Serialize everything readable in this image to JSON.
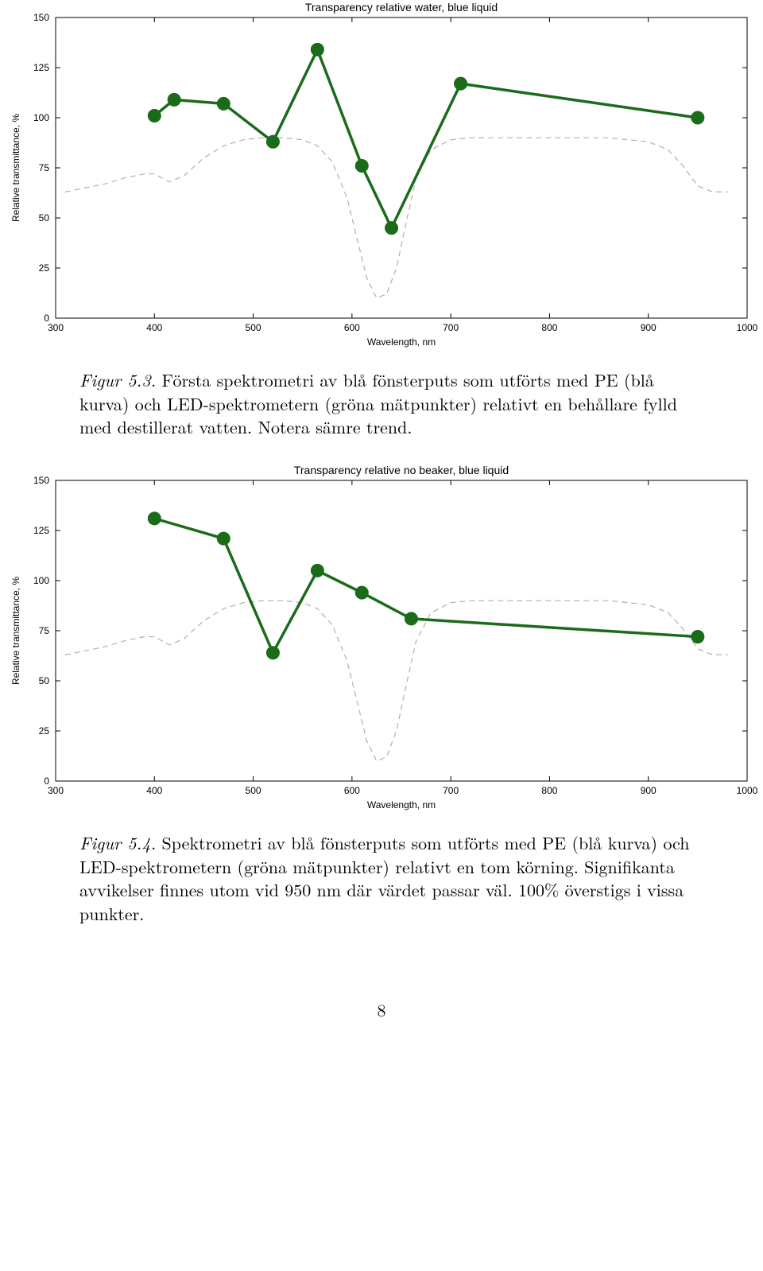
{
  "chart1": {
    "type": "line+scatter",
    "title": "Transparency relative water, blue liquid",
    "title_fontsize": 14,
    "xlabel": "Wavelength, nm",
    "ylabel": "Relative transmittance, %",
    "label_fontsize": 12,
    "tick_fontsize": 12,
    "xlim": [
      300,
      1000
    ],
    "ylim": [
      0,
      150
    ],
    "xticks": [
      300,
      400,
      500,
      600,
      700,
      800,
      900,
      1000
    ],
    "yticks": [
      0,
      25,
      50,
      75,
      100,
      125,
      150
    ],
    "background_color": "#ffffff",
    "axis_color": "#000000",
    "tick_length": 6,
    "green_series": {
      "color": "#1a6b1a",
      "line_width": 3.5,
      "marker": "circle",
      "marker_size": 8,
      "points": [
        [
          400,
          101
        ],
        [
          420,
          109
        ],
        [
          470,
          107
        ],
        [
          520,
          88
        ],
        [
          565,
          134
        ],
        [
          610,
          76
        ],
        [
          640,
          45
        ],
        [
          710,
          117
        ],
        [
          950,
          100
        ]
      ]
    },
    "gray_series": {
      "color": "#b0b0b0",
      "line_width": 1.2,
      "dash": "6,6",
      "points": [
        [
          310,
          63
        ],
        [
          330,
          65
        ],
        [
          350,
          67
        ],
        [
          370,
          70
        ],
        [
          390,
          72
        ],
        [
          400,
          72
        ],
        [
          415,
          68
        ],
        [
          430,
          71
        ],
        [
          450,
          80
        ],
        [
          470,
          86
        ],
        [
          490,
          89
        ],
        [
          510,
          90
        ],
        [
          530,
          90
        ],
        [
          550,
          89
        ],
        [
          565,
          86
        ],
        [
          580,
          78
        ],
        [
          595,
          60
        ],
        [
          605,
          40
        ],
        [
          615,
          20
        ],
        [
          625,
          10
        ],
        [
          635,
          12
        ],
        [
          645,
          25
        ],
        [
          655,
          48
        ],
        [
          665,
          70
        ],
        [
          680,
          84
        ],
        [
          700,
          89
        ],
        [
          720,
          90
        ],
        [
          740,
          90
        ],
        [
          760,
          90
        ],
        [
          780,
          90
        ],
        [
          800,
          90
        ],
        [
          820,
          90
        ],
        [
          840,
          90
        ],
        [
          860,
          90
        ],
        [
          880,
          89
        ],
        [
          900,
          88
        ],
        [
          920,
          84
        ],
        [
          935,
          76
        ],
        [
          950,
          66
        ],
        [
          965,
          63
        ],
        [
          980,
          63
        ]
      ]
    }
  },
  "caption1": {
    "fig_label": "Figur 5.3.",
    "text": " Första spektrometri av blå fönsterputs som utförts med PE (blå kurva) och LED-spektrometern (gröna mätpunkter) relativt en behållare fylld med destillerat vatten. Notera sämre trend."
  },
  "chart2": {
    "type": "line+scatter",
    "title": "Transparency relative no beaker, blue liquid",
    "title_fontsize": 14,
    "xlabel": "Wavelength, nm",
    "ylabel": "Relative transmittance, %",
    "label_fontsize": 12,
    "tick_fontsize": 12,
    "xlim": [
      300,
      1000
    ],
    "ylim": [
      0,
      150
    ],
    "xticks": [
      300,
      400,
      500,
      600,
      700,
      800,
      900,
      1000
    ],
    "yticks": [
      0,
      25,
      50,
      75,
      100,
      125,
      150
    ],
    "background_color": "#ffffff",
    "axis_color": "#000000",
    "tick_length": 6,
    "green_series": {
      "color": "#1a6b1a",
      "line_width": 3.5,
      "marker": "circle",
      "marker_size": 8,
      "points": [
        [
          400,
          131
        ],
        [
          470,
          121
        ],
        [
          520,
          64
        ],
        [
          565,
          105
        ],
        [
          610,
          94
        ],
        [
          660,
          81
        ],
        [
          950,
          72
        ]
      ]
    },
    "gray_series": {
      "color": "#b0b0b0",
      "line_width": 1.2,
      "dash": "6,6",
      "points": [
        [
          310,
          63
        ],
        [
          330,
          65
        ],
        [
          350,
          67
        ],
        [
          370,
          70
        ],
        [
          390,
          72
        ],
        [
          400,
          72
        ],
        [
          415,
          68
        ],
        [
          430,
          71
        ],
        [
          450,
          80
        ],
        [
          470,
          86
        ],
        [
          490,
          89
        ],
        [
          510,
          90
        ],
        [
          530,
          90
        ],
        [
          550,
          89
        ],
        [
          565,
          86
        ],
        [
          580,
          78
        ],
        [
          595,
          60
        ],
        [
          605,
          40
        ],
        [
          615,
          20
        ],
        [
          625,
          10
        ],
        [
          635,
          12
        ],
        [
          645,
          25
        ],
        [
          655,
          48
        ],
        [
          665,
          70
        ],
        [
          680,
          84
        ],
        [
          700,
          89
        ],
        [
          720,
          90
        ],
        [
          740,
          90
        ],
        [
          760,
          90
        ],
        [
          780,
          90
        ],
        [
          800,
          90
        ],
        [
          820,
          90
        ],
        [
          840,
          90
        ],
        [
          860,
          90
        ],
        [
          880,
          89
        ],
        [
          900,
          88
        ],
        [
          920,
          84
        ],
        [
          935,
          76
        ],
        [
          950,
          66
        ],
        [
          965,
          63
        ],
        [
          980,
          63
        ]
      ]
    }
  },
  "caption2": {
    "fig_label": "Figur 5.4.",
    "text": " Spektrometri av blå fönsterputs som utförts med PE (blå kurva) och LED-spektrometern (gröna mätpunkter) relativt en tom körning. Signifikanta avvikelser finnes utom vid 950 nm där värdet passar väl. 100% överstigs i vissa punkter."
  },
  "page_number": "8"
}
